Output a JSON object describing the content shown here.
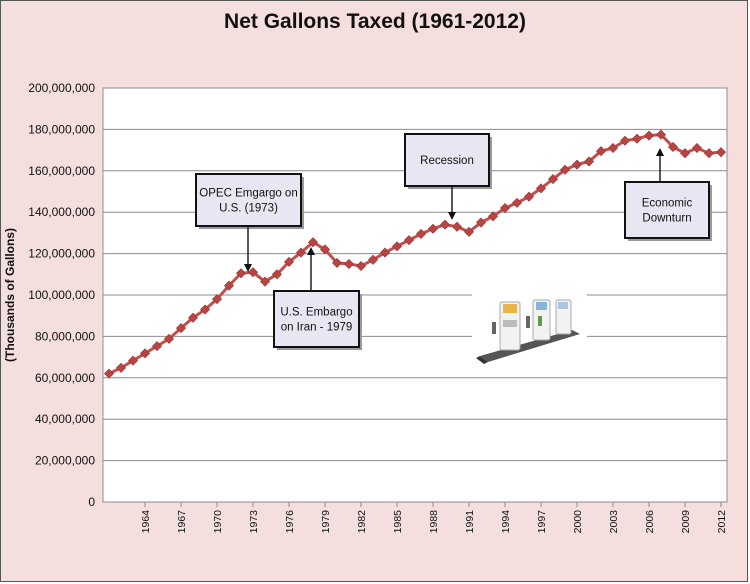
{
  "chart_data": {
    "type": "line",
    "title": "Net Gallons Taxed (1961-2012)",
    "xlabel": "",
    "ylabel": "(Thousands of Gallons)",
    "ylim": [
      0,
      200000000
    ],
    "xlim": [
      1961,
      2012
    ],
    "yticks": [
      0,
      20000000,
      40000000,
      60000000,
      80000000,
      100000000,
      120000000,
      140000000,
      160000000,
      180000000,
      200000000
    ],
    "ytick_labels": [
      "0",
      "20,000,000",
      "40,000,000",
      "60,000,000",
      "80,000,000",
      "100,000,000",
      "120,000,000",
      "140,000,000",
      "160,000,000",
      "180,000,000",
      "200,000,000"
    ],
    "xtick_labels": [
      "1964",
      "1967",
      "1970",
      "1973",
      "1976",
      "1979",
      "1982",
      "1985",
      "1988",
      "1991",
      "1994",
      "1997",
      "2000",
      "2003",
      "2006",
      "2009",
      "2012"
    ],
    "grid": "horizontal",
    "legend": "none",
    "series": [
      {
        "color": "#c0504d",
        "marker_color": "#b84444",
        "x": [
          1961,
          1962,
          1963,
          1964,
          1965,
          1966,
          1967,
          1968,
          1969,
          1970,
          1971,
          1972,
          1973,
          1974,
          1975,
          1976,
          1977,
          1978,
          1979,
          1980,
          1981,
          1982,
          1983,
          1984,
          1985,
          1986,
          1987,
          1988,
          1989,
          1990,
          1991,
          1992,
          1993,
          1994,
          1995,
          1996,
          1997,
          1998,
          1999,
          2000,
          2001,
          2002,
          2003,
          2004,
          2005,
          2006,
          2007,
          2008,
          2009,
          2010,
          2011,
          2012
        ],
        "values": [
          62000000,
          64800000,
          68300000,
          71800000,
          75300000,
          78800000,
          84000000,
          89000000,
          93000000,
          98000000,
          104500000,
          110500000,
          111000000,
          106500000,
          110000000,
          116000000,
          120500000,
          125500000,
          122000000,
          115500000,
          115000000,
          114000000,
          117000000,
          120500000,
          123500000,
          126500000,
          129500000,
          132000000,
          134000000,
          133000000,
          130500000,
          135000000,
          138000000,
          142000000,
          144500000,
          147500000,
          151500000,
          156000000,
          160500000,
          163000000,
          164500000,
          169500000,
          171000000,
          174500000,
          175500000,
          177000000,
          177500000,
          171500000,
          168500000,
          171000000,
          168500000,
          169000000
        ]
      }
    ],
    "annotations": [
      {
        "text_lines": [
          "OPEC Emgargo on",
          "U.S.  (1973)"
        ],
        "year": 1973
      },
      {
        "text_lines": [
          "U.S. Embargo",
          "on Iran - 1979"
        ],
        "year": 1978
      },
      {
        "text_lines": [
          "Recession"
        ],
        "year": 1990
      },
      {
        "text_lines": [
          "Economic",
          "Downturn"
        ],
        "year": 2007
      }
    ]
  },
  "image": {
    "icon": "gas-pumps-image"
  }
}
